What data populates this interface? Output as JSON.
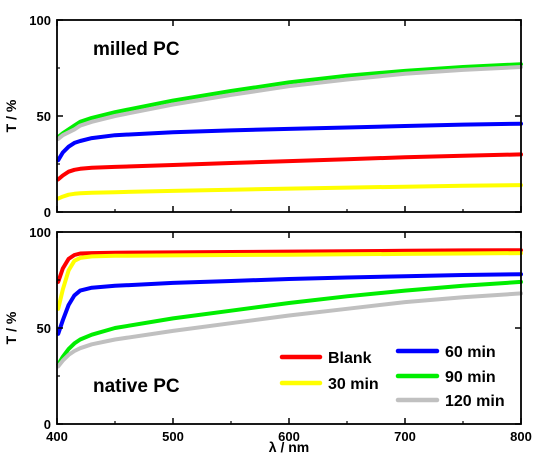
{
  "chart_data": {
    "type": "line",
    "xlabel": "λ / nm",
    "xlim": [
      400,
      800
    ],
    "x_ticks": [
      400,
      500,
      600,
      700,
      800
    ],
    "x_tick_labels": [
      "400",
      "500",
      "600",
      "700",
      "800"
    ],
    "legend_placement": "bottom-right of lower panel",
    "panels": [
      {
        "title": "milled PC",
        "ylabel": "T / %",
        "ylim": [
          0,
          100
        ],
        "y_ticks": [
          0,
          50,
          100
        ],
        "y_tick_labels": [
          "0",
          "50",
          "100"
        ],
        "x": [
          401,
          405,
          410,
          415,
          420,
          430,
          450,
          500,
          550,
          600,
          650,
          700,
          750,
          800
        ],
        "series": [
          {
            "name": "Blank",
            "color": "#ff0000",
            "values": [
              17,
              19,
              21,
              22,
              22.5,
              23,
              23.5,
              24.5,
              25.5,
              26.5,
              27.5,
              28.5,
              29.3,
              30
            ]
          },
          {
            "name": "30 min",
            "color": "#ffff00",
            "values": [
              7,
              8,
              9,
              9.5,
              9.8,
              10,
              10.3,
              11,
              11.6,
              12.2,
              12.7,
              13.2,
              13.7,
              14
            ]
          },
          {
            "name": "60 min",
            "color": "#0000ff",
            "values": [
              27,
              31,
              34,
              36,
              37,
              38.5,
              40,
              41.5,
              42.5,
              43.3,
              44,
              44.8,
              45.5,
              46
            ]
          },
          {
            "name": "90 min",
            "color": "#00ee00",
            "values": [
              39,
              41,
              43,
              45,
              47,
              49,
              52,
              58,
              63,
              67.5,
              71,
              73.5,
              75.5,
              77
            ]
          },
          {
            "name": "120 min",
            "color": "#c0c0c0",
            "values": [
              38,
              40,
              41.5,
              43,
              45,
              47,
              50,
              56,
              61,
              65.5,
              69,
              72,
              74,
              75.5
            ]
          }
        ]
      },
      {
        "title": "native PC",
        "ylabel": "T / %",
        "ylim": [
          0,
          100
        ],
        "y_ticks": [
          0,
          50,
          100
        ],
        "y_tick_labels": [
          "0",
          "50",
          "100"
        ],
        "x": [
          401,
          405,
          410,
          415,
          420,
          430,
          450,
          500,
          550,
          600,
          650,
          700,
          750,
          800
        ],
        "series": [
          {
            "name": "Blank",
            "color": "#ff0000",
            "values": [
              74,
              81,
              86,
              88,
              88.8,
              89,
              89.2,
              89.4,
              89.6,
              89.8,
              90,
              90.2,
              90.4,
              90.5
            ]
          },
          {
            "name": "30 min",
            "color": "#ffff00",
            "values": [
              60,
              70,
              80,
              85,
              86.5,
              87.3,
              87.6,
              87.8,
              88,
              88.2,
              88.4,
              88.6,
              88.8,
              89
            ]
          },
          {
            "name": "60 min",
            "color": "#0000ff",
            "values": [
              47,
              54,
              62,
              67,
              69.5,
              71,
              72,
              73.5,
              74.5,
              75.5,
              76.3,
              77,
              77.6,
              78
            ]
          },
          {
            "name": "90 min",
            "color": "#00ee00",
            "values": [
              31,
              35,
              39,
              42,
              44,
              46.5,
              50,
              55,
              59,
              63,
              66.5,
              69.5,
              72,
              74
            ]
          },
          {
            "name": "120 min",
            "color": "#c0c0c0",
            "values": [
              30,
              33,
              36,
              38,
              39.5,
              41.5,
              44,
              48.5,
              52.5,
              56.5,
              60,
              63.5,
              66,
              68
            ]
          }
        ]
      }
    ]
  }
}
